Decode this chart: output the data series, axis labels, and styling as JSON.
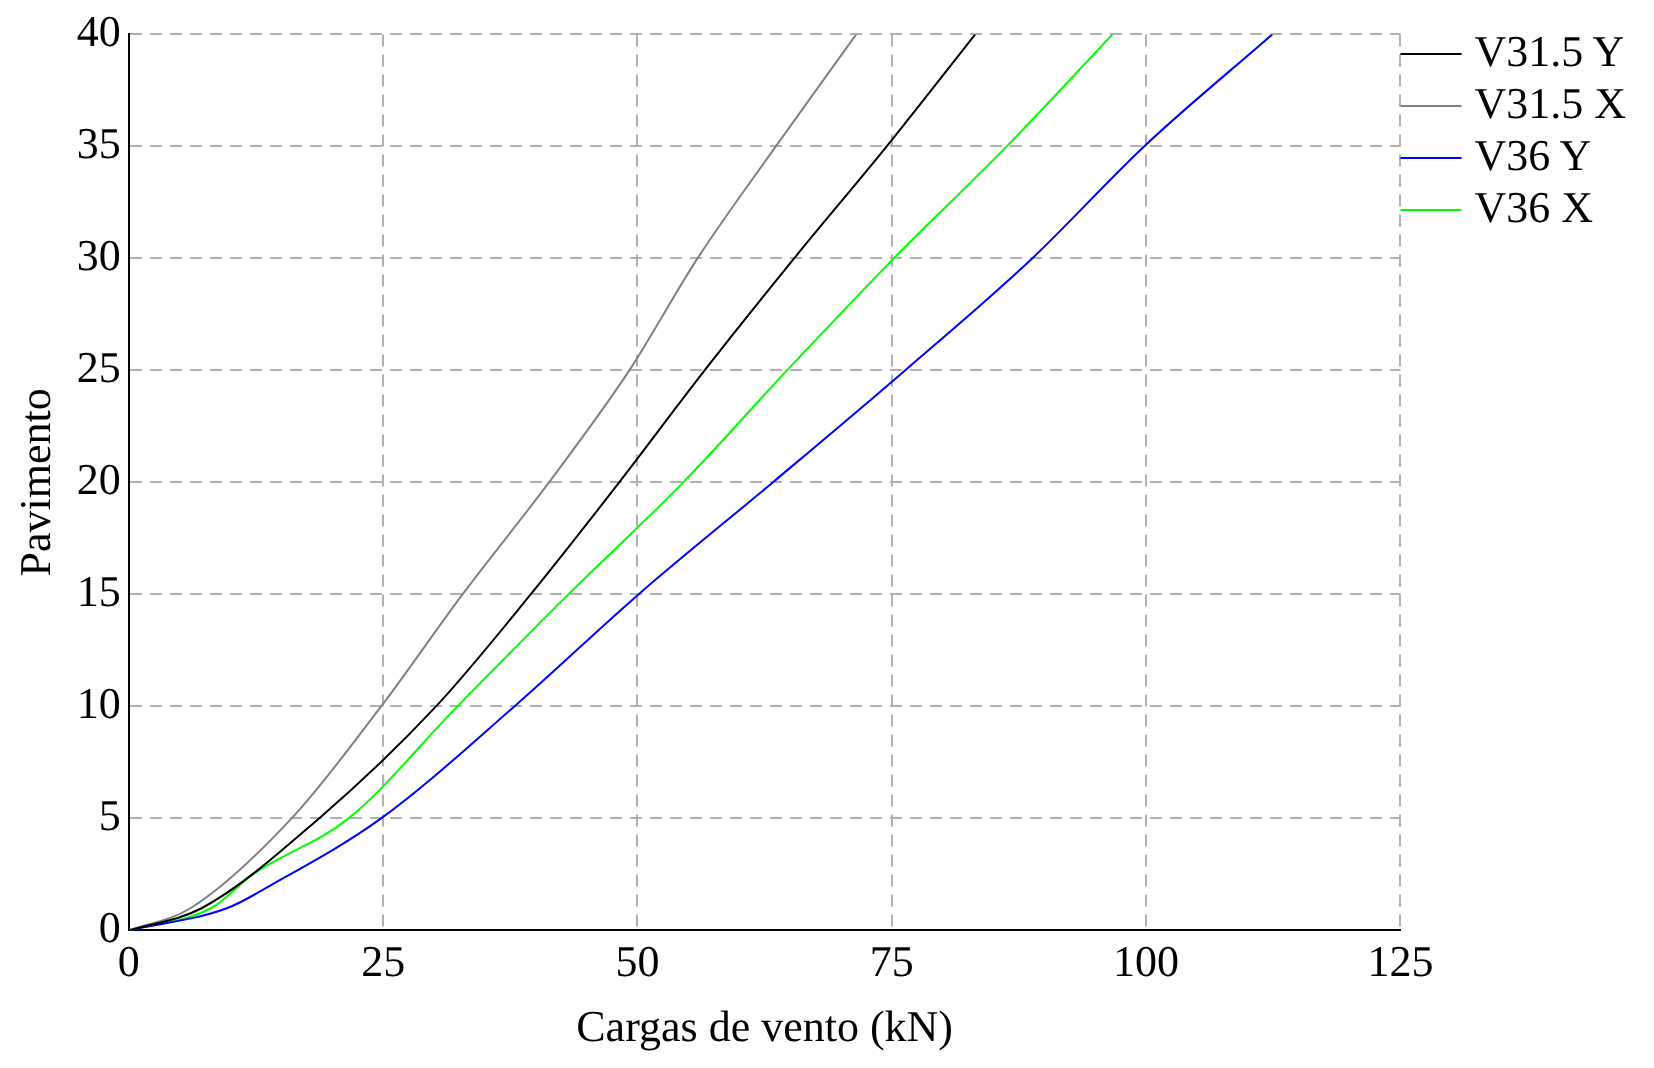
{
  "chart_data": {
    "type": "line",
    "xlabel": "Cargas de vento (kN)",
    "ylabel": "Pavimento",
    "xlim": [
      0,
      125
    ],
    "xticks": [
      0,
      25,
      50,
      75,
      100,
      125
    ],
    "ylim": [
      0,
      40
    ],
    "yticks": [
      0,
      5,
      10,
      15,
      20,
      25,
      30,
      35,
      40
    ],
    "grid": true,
    "legend": "top right",
    "marker": "none",
    "line_style": "solid",
    "series": [
      {
        "name": "V31.5 Y",
        "color": "#000000",
        "x": [
          0,
          7.2,
          18.7,
          30.2,
          39.5,
          48.2,
          56.6,
          65.4,
          74.5,
          83.2
        ],
        "values": [
          0,
          1,
          5,
          10,
          15,
          20,
          25,
          30,
          35,
          40
        ]
      },
      {
        "name": "V31.5 X",
        "color": "#808080",
        "x": [
          0,
          6.1,
          16,
          24.8,
          32.8,
          41.3,
          49.2,
          55.9,
          63.6,
          71.5
        ],
        "values": [
          0,
          1,
          5,
          10,
          15,
          20,
          25,
          30,
          35,
          40
        ]
      },
      {
        "name": "V36 Y",
        "color": "#0000ff",
        "x": [
          0,
          9.7,
          13.9,
          24.8,
          37.9,
          50.1,
          63.3,
          76.3,
          88.8,
          99.8,
          112.4
        ],
        "values": [
          0,
          1,
          2,
          5,
          10,
          15,
          20,
          25,
          30,
          35,
          40
        ]
      },
      {
        "name": "V36 X",
        "color": "#00ff00",
        "x": [
          0,
          8.1,
          12.2,
          21.6,
          32.3,
          43.2,
          54.5,
          64.7,
          75.2,
          86.3,
          96.7
        ],
        "values": [
          0,
          1,
          2.5,
          5,
          10,
          15,
          20,
          25,
          30,
          35,
          40
        ]
      }
    ]
  }
}
